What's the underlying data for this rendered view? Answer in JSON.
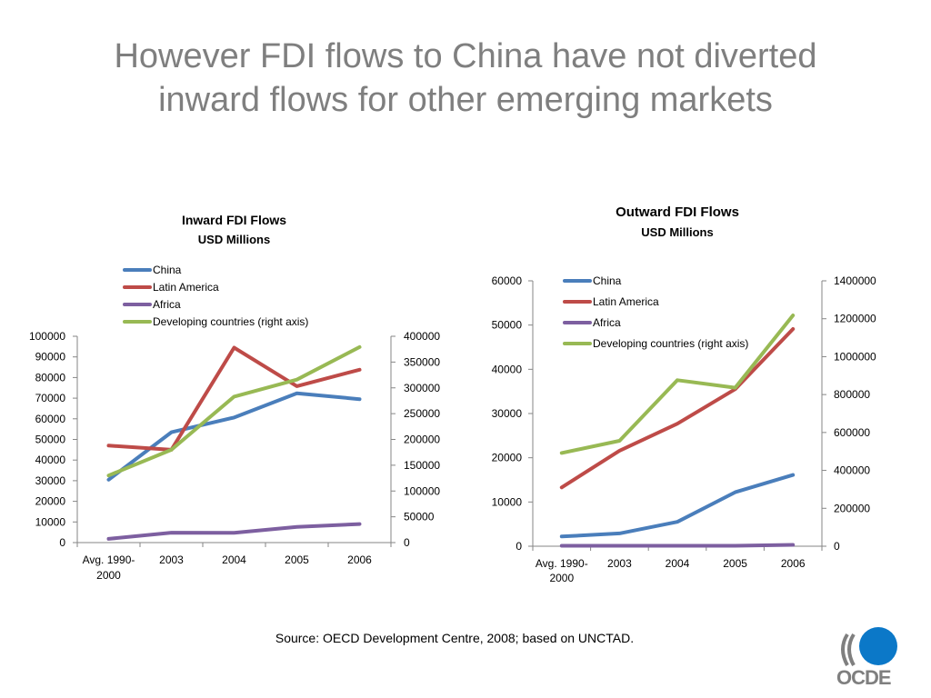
{
  "slide": {
    "title_line1": "However FDI flows to China have not diverted",
    "title_line2": "inward flows for other emerging markets",
    "source": "Source:  OECD Development Centre, 2008; based on  UNCTAD.",
    "logo_text": "OCDE"
  },
  "colors": {
    "China": "#4a7ebb",
    "Latin America": "#be4b48",
    "Africa": "#7d5fa0",
    "Developing countries (right axis)": "#98b954"
  },
  "chart_data": [
    {
      "type": "line",
      "title": "Inward FDI Flows",
      "subtitle": "USD Millions",
      "categories": [
        "Avg. 1990-2000",
        "2003",
        "2004",
        "2005",
        "2006"
      ],
      "category_lines": [
        [
          "Avg. 1990-",
          "2000"
        ],
        [
          "2003"
        ],
        [
          "2004"
        ],
        [
          "2005"
        ],
        [
          "2006"
        ]
      ],
      "ylim": [
        0,
        100000
      ],
      "y_ticks": [
        0,
        10000,
        20000,
        30000,
        40000,
        50000,
        60000,
        70000,
        80000,
        90000,
        100000
      ],
      "y2lim": [
        0,
        400000
      ],
      "y2_ticks": [
        0,
        50000,
        100000,
        150000,
        200000,
        250000,
        300000,
        350000,
        400000
      ],
      "legend": "top",
      "grid": false,
      "series": [
        {
          "name": "China",
          "axis": "left",
          "values": [
            30500,
            53500,
            60600,
            72400,
            69500
          ]
        },
        {
          "name": "Latin America",
          "axis": "left",
          "values": [
            47000,
            45000,
            94500,
            75800,
            83800
          ]
        },
        {
          "name": "Africa",
          "axis": "left",
          "values": [
            1800,
            4800,
            4700,
            7600,
            9000
          ]
        },
        {
          "name": "Developing countries (right axis)",
          "axis": "right",
          "values": [
            130000,
            180000,
            283000,
            316000,
            379000
          ]
        }
      ]
    },
    {
      "type": "line",
      "title": "Outward FDI Flows",
      "subtitle": "USD Millions",
      "categories": [
        "Avg. 1990-2000",
        "2003",
        "2004",
        "2005",
        "2006"
      ],
      "category_lines": [
        [
          "Avg. 1990-",
          "2000"
        ],
        [
          "2003"
        ],
        [
          "2004"
        ],
        [
          "2005"
        ],
        [
          "2006"
        ]
      ],
      "ylim": [
        0,
        60000
      ],
      "y_ticks": [
        0,
        10000,
        20000,
        30000,
        40000,
        50000,
        60000
      ],
      "y2lim": [
        0,
        1400000
      ],
      "y2_ticks": [
        0,
        200000,
        400000,
        600000,
        800000,
        1000000,
        1200000,
        1400000
      ],
      "legend": "top-left",
      "grid": false,
      "series": [
        {
          "name": "China",
          "axis": "left",
          "values": [
            2200,
            2900,
            5500,
            12200,
            16100
          ]
        },
        {
          "name": "Latin America",
          "axis": "left",
          "values": [
            13300,
            21600,
            27700,
            35500,
            49100
          ]
        },
        {
          "name": "Africa",
          "axis": "left",
          "values": [
            100,
            100,
            100,
            100,
            300
          ]
        },
        {
          "name": "Developing countries (right axis)",
          "axis": "right",
          "values": [
            492000,
            556000,
            876000,
            836000,
            1218000
          ]
        }
      ]
    }
  ]
}
